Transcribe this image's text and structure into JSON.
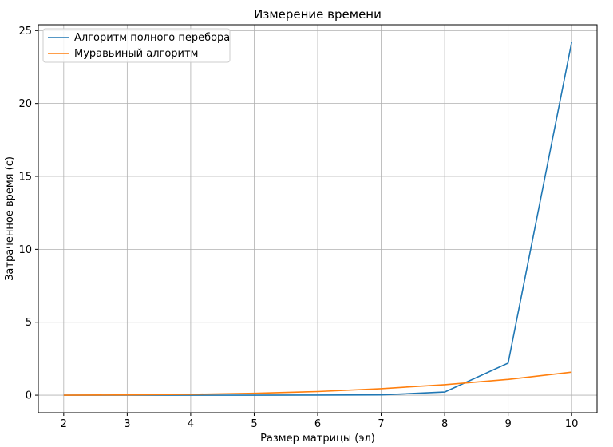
{
  "chart_data": {
    "type": "line",
    "title": "Измерение времени",
    "xlabel": "Размер матрицы (эл)",
    "ylabel": "Затраченное время (с)",
    "x": [
      2,
      3,
      4,
      5,
      6,
      7,
      8,
      9,
      10
    ],
    "xticks": [
      "2",
      "3",
      "4",
      "5",
      "6",
      "7",
      "8",
      "9",
      "10"
    ],
    "yticks": [
      "0",
      "5",
      "10",
      "15",
      "20",
      "25"
    ],
    "xlim": [
      1.6,
      10.4
    ],
    "ylim": [
      -1.2,
      25.4
    ],
    "grid": true,
    "legend_position": "top-left",
    "series": [
      {
        "name": "Алгоритм полного перебора",
        "color": "#1f77b4",
        "values": [
          0.0,
          0.0,
          0.0,
          0.0,
          0.01,
          0.02,
          0.22,
          2.2,
          24.2
        ]
      },
      {
        "name": "Муравьиный алгоритм",
        "color": "#ff7f0e",
        "values": [
          0.0,
          0.02,
          0.06,
          0.13,
          0.25,
          0.45,
          0.72,
          1.08,
          1.58
        ]
      }
    ]
  }
}
